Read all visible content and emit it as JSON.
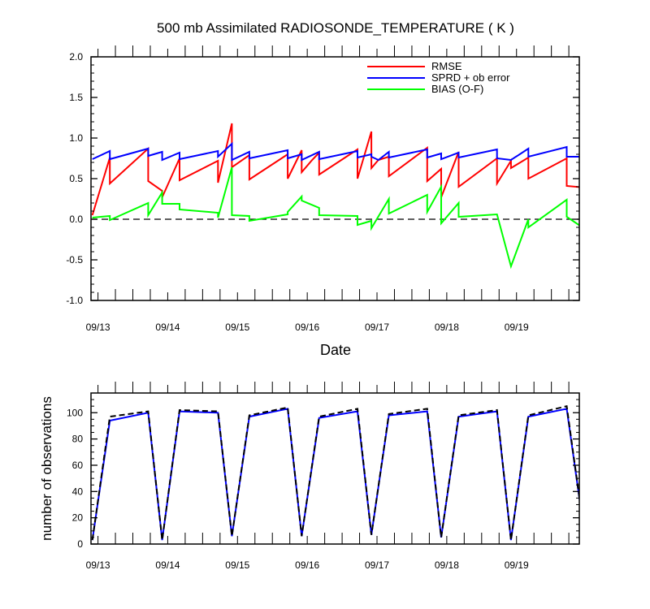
{
  "chart_data": [
    {
      "type": "line",
      "title": "500 mb Assimilated RADIOSONDE_TEMPERATURE ( K )",
      "xlabel": "Date",
      "ylabel": "",
      "x_unit": "days since Sept 12, 2020 00Z",
      "xlim": [
        0.9,
        7.9
      ],
      "ylim": [
        -1.0,
        2.0
      ],
      "yticks": [
        -1.0,
        -0.5,
        0.0,
        0.5,
        1.0,
        1.5,
        2.0
      ],
      "ytick_labels": [
        "-1.0",
        "-0.5",
        "0.0",
        "0.5",
        "1.0",
        "1.5",
        "2.0"
      ],
      "xticks": [
        1,
        2,
        3,
        4,
        5,
        6,
        7
      ],
      "xtick_labels": [
        "09/13",
        "09/14",
        "09/15",
        "09/16",
        "09/17",
        "09/18",
        "09/19"
      ],
      "reference_line": 0.0,
      "legend_position": "top-right",
      "series": [
        {
          "name": "RMSE",
          "color": "#ff0000",
          "points": [
            [
              0.92,
              0.05
            ],
            [
              1.17,
              0.76
            ],
            [
              1.17,
              0.44
            ],
            [
              1.72,
              0.87
            ],
            [
              1.72,
              0.47
            ],
            [
              1.92,
              0.35
            ],
            [
              1.92,
              0.27
            ],
            [
              2.17,
              0.75
            ],
            [
              2.17,
              0.48
            ],
            [
              2.72,
              0.72
            ],
            [
              2.72,
              0.45
            ],
            [
              2.92,
              1.18
            ],
            [
              2.92,
              0.64
            ],
            [
              3.17,
              0.79
            ],
            [
              3.17,
              0.49
            ],
            [
              3.72,
              0.8
            ],
            [
              3.72,
              0.5
            ],
            [
              3.92,
              0.85
            ],
            [
              3.92,
              0.58
            ],
            [
              4.07,
              0.73
            ],
            [
              4.17,
              0.82
            ],
            [
              4.17,
              0.55
            ],
            [
              4.72,
              0.86
            ],
            [
              4.72,
              0.5
            ],
            [
              4.92,
              1.08
            ],
            [
              4.92,
              0.63
            ],
            [
              5.02,
              0.73
            ],
            [
              5.17,
              0.77
            ],
            [
              5.17,
              0.53
            ],
            [
              5.72,
              0.88
            ],
            [
              5.72,
              0.47
            ],
            [
              5.92,
              0.62
            ],
            [
              5.92,
              0.27
            ],
            [
              6.17,
              0.83
            ],
            [
              6.17,
              0.4
            ],
            [
              6.72,
              0.75
            ],
            [
              6.72,
              0.44
            ],
            [
              6.92,
              0.72
            ],
            [
              6.92,
              0.63
            ],
            [
              7.17,
              0.76
            ],
            [
              7.17,
              0.5
            ],
            [
              7.72,
              0.75
            ],
            [
              7.72,
              0.41
            ],
            [
              7.98,
              0.39
            ]
          ]
        },
        {
          "name": "SPRD + ob error",
          "color": "#0000ff",
          "points": [
            [
              0.92,
              0.74
            ],
            [
              1.17,
              0.84
            ],
            [
              1.17,
              0.74
            ],
            [
              1.72,
              0.87
            ],
            [
              1.72,
              0.78
            ],
            [
              1.92,
              0.83
            ],
            [
              1.92,
              0.73
            ],
            [
              2.17,
              0.82
            ],
            [
              2.17,
              0.74
            ],
            [
              2.72,
              0.84
            ],
            [
              2.72,
              0.77
            ],
            [
              2.92,
              0.93
            ],
            [
              2.92,
              0.73
            ],
            [
              3.17,
              0.83
            ],
            [
              3.17,
              0.75
            ],
            [
              3.72,
              0.85
            ],
            [
              3.72,
              0.75
            ],
            [
              3.92,
              0.8
            ],
            [
              3.92,
              0.73
            ],
            [
              4.17,
              0.83
            ],
            [
              4.17,
              0.74
            ],
            [
              4.72,
              0.84
            ],
            [
              4.72,
              0.76
            ],
            [
              4.92,
              0.8
            ],
            [
              4.92,
              0.77
            ],
            [
              5.02,
              0.73
            ],
            [
              5.17,
              0.83
            ],
            [
              5.17,
              0.76
            ],
            [
              5.72,
              0.86
            ],
            [
              5.72,
              0.76
            ],
            [
              5.92,
              0.81
            ],
            [
              5.92,
              0.74
            ],
            [
              6.17,
              0.82
            ],
            [
              6.17,
              0.76
            ],
            [
              6.72,
              0.86
            ],
            [
              6.72,
              0.75
            ],
            [
              6.92,
              0.73
            ],
            [
              7.17,
              0.87
            ],
            [
              7.17,
              0.77
            ],
            [
              7.72,
              0.89
            ],
            [
              7.72,
              0.77
            ],
            [
              7.98,
              0.77
            ]
          ]
        },
        {
          "name": "BIAS (O-F)",
          "color": "#00ff00",
          "points": [
            [
              0.92,
              0.02
            ],
            [
              1.17,
              0.04
            ],
            [
              1.17,
              -0.01
            ],
            [
              1.72,
              0.2
            ],
            [
              1.72,
              0.05
            ],
            [
              1.92,
              0.33
            ],
            [
              1.92,
              0.19
            ],
            [
              2.17,
              0.19
            ],
            [
              2.17,
              0.12
            ],
            [
              2.72,
              0.08
            ],
            [
              2.72,
              0.02
            ],
            [
              2.92,
              0.64
            ],
            [
              2.92,
              0.05
            ],
            [
              3.17,
              0.04
            ],
            [
              3.17,
              -0.02
            ],
            [
              3.72,
              0.06
            ],
            [
              3.72,
              0.09
            ],
            [
              3.92,
              0.28
            ],
            [
              3.92,
              0.23
            ],
            [
              4.17,
              0.14
            ],
            [
              4.17,
              0.05
            ],
            [
              4.72,
              0.04
            ],
            [
              4.72,
              -0.07
            ],
            [
              4.92,
              -0.02
            ],
            [
              4.92,
              -0.11
            ],
            [
              5.17,
              0.25
            ],
            [
              5.17,
              0.07
            ],
            [
              5.72,
              0.3
            ],
            [
              5.72,
              0.09
            ],
            [
              5.92,
              0.4
            ],
            [
              5.92,
              -0.05
            ],
            [
              6.17,
              0.2
            ],
            [
              6.17,
              0.03
            ],
            [
              6.72,
              0.06
            ],
            [
              6.92,
              -0.58
            ],
            [
              7.17,
              0.0
            ],
            [
              7.17,
              -0.1
            ],
            [
              7.72,
              0.24
            ],
            [
              7.72,
              0.03
            ],
            [
              7.98,
              -0.12
            ]
          ]
        }
      ]
    },
    {
      "type": "line",
      "title": "",
      "xlabel": "",
      "ylabel": "number of observations",
      "x_unit": "days since Sept 12, 2020 00Z",
      "xlim": [
        0.9,
        7.9
      ],
      "ylim": [
        0,
        115
      ],
      "yticks": [
        0,
        20,
        40,
        60,
        80,
        100
      ],
      "ytick_labels": [
        "0",
        "20",
        "40",
        "60",
        "80",
        "100"
      ],
      "xticks": [
        1,
        2,
        3,
        4,
        5,
        6,
        7
      ],
      "xtick_labels": [
        "09/13",
        "09/14",
        "09/15",
        "09/16",
        "09/17",
        "09/18",
        "09/19"
      ],
      "series": [
        {
          "color": "#0000ff",
          "style": "solid",
          "points": [
            [
              0.92,
              3
            ],
            [
              1.17,
              94
            ],
            [
              1.72,
              100
            ],
            [
              1.92,
              3
            ],
            [
              2.17,
              101
            ],
            [
              2.72,
              100
            ],
            [
              2.92,
              6
            ],
            [
              3.17,
              97
            ],
            [
              3.72,
              103
            ],
            [
              3.92,
              6
            ],
            [
              4.17,
              96
            ],
            [
              4.72,
              101
            ],
            [
              4.92,
              7
            ],
            [
              5.17,
              98
            ],
            [
              5.72,
              101
            ],
            [
              5.92,
              5
            ],
            [
              6.17,
              97
            ],
            [
              6.72,
              101
            ],
            [
              6.92,
              3
            ],
            [
              7.17,
              97
            ],
            [
              7.72,
              103
            ],
            [
              7.98,
              5
            ]
          ]
        },
        {
          "color": "#000000",
          "style": "dashed",
          "points": [
            [
              0.92,
              3
            ],
            [
              1.17,
              97
            ],
            [
              1.72,
              101
            ],
            [
              1.92,
              3
            ],
            [
              2.17,
              102
            ],
            [
              2.72,
              101
            ],
            [
              2.92,
              6
            ],
            [
              3.17,
              98
            ],
            [
              3.72,
              104
            ],
            [
              3.92,
              6
            ],
            [
              4.17,
              97
            ],
            [
              4.72,
              103
            ],
            [
              4.92,
              7
            ],
            [
              5.17,
              99
            ],
            [
              5.72,
              103
            ],
            [
              5.92,
              5
            ],
            [
              6.17,
              98
            ],
            [
              6.72,
              102
            ],
            [
              6.92,
              3
            ],
            [
              7.17,
              98
            ],
            [
              7.72,
              105
            ],
            [
              7.98,
              5
            ]
          ]
        }
      ]
    }
  ]
}
